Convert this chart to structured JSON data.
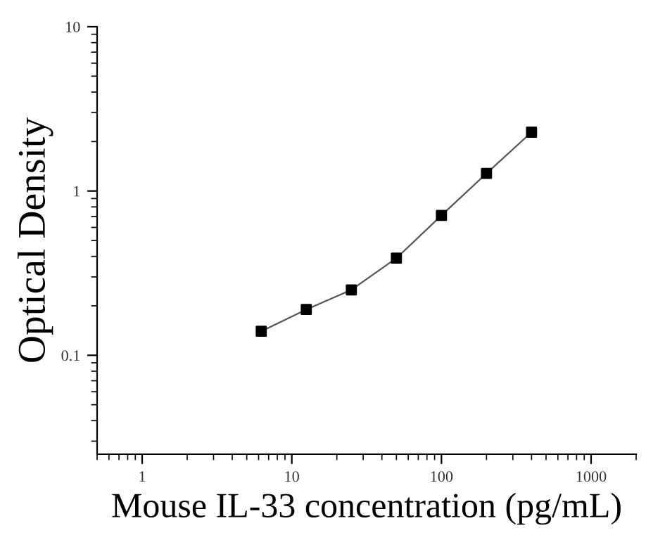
{
  "chart_data": {
    "type": "scatter",
    "xlabel": "Mouse IL-33 concentration (pg/mL)",
    "ylabel": "Optical Density",
    "log": "xy",
    "x": [
      6.25,
      12.5,
      25,
      50,
      100,
      200,
      400
    ],
    "series": [
      {
        "type": "line",
        "color": "#555555",
        "marker": "none",
        "line_style": "solid",
        "values": [
          0.14,
          0.19,
          0.25,
          0.39,
          0.71,
          1.28,
          2.28
        ]
      },
      {
        "color": "#000000",
        "marker": "square",
        "values": [
          0.14,
          0.19,
          0.25,
          0.39,
          0.71,
          1.28,
          2.28
        ]
      }
    ],
    "xlim": [
      0.5,
      2000
    ],
    "ylim": [
      0.025,
      10
    ],
    "xticks": [
      1,
      10,
      100,
      1000
    ],
    "yticks": [
      {
        "value": 0.1,
        "label": "0.1"
      },
      1,
      10
    ],
    "grid": false,
    "legend": false
  }
}
